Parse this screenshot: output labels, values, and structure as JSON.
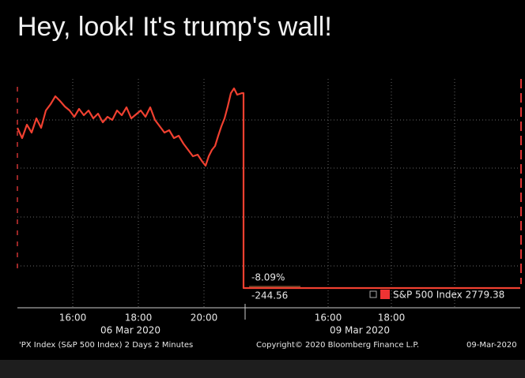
{
  "caption": "Hey, look! It's trump's wall!",
  "chart": {
    "left_times": [
      "16:00",
      "18:00",
      "20:00"
    ],
    "left_date": "06 Mar 2020",
    "right_times": [
      "16:00",
      "18:00"
    ],
    "right_date": "09 Mar 2020",
    "change_pct": "-8.09%",
    "change_abs": "-244.56",
    "legend": "S&P 500 Index 2779.38",
    "footer_left": "'PX Index (S&P 500 Index) 2 Days 2 Minutes",
    "footer_center": "Copyright© 2020 Bloomberg Finance L.P.",
    "footer_right": "09-Mar-2020"
  }
}
